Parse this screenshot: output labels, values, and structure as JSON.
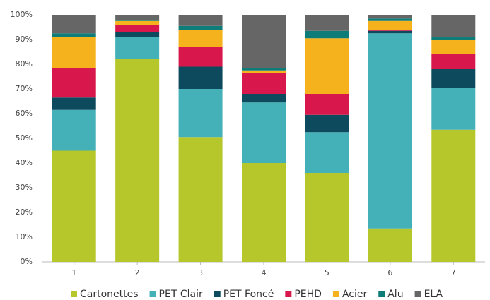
{
  "chart_data": {
    "type": "stacked_bar",
    "categories": [
      "1",
      "2",
      "3",
      "4",
      "5",
      "6",
      "7"
    ],
    "series": [
      {
        "name": "Cartonettes",
        "color": "#b5c72a",
        "values": [
          45,
          82,
          50.5,
          40,
          36,
          13.5,
          53.5
        ]
      },
      {
        "name": "PET Clair",
        "color": "#44b0b8",
        "values": [
          16.5,
          9,
          19.5,
          24.5,
          16.5,
          79,
          17
        ]
      },
      {
        "name": "PET Foncé",
        "color": "#0d4a5e",
        "values": [
          5,
          2,
          9,
          3.5,
          7,
          1,
          7.5
        ]
      },
      {
        "name": "PEHD",
        "color": "#d8184c",
        "values": [
          12,
          3,
          8,
          8.5,
          8.5,
          0.5,
          6
        ]
      },
      {
        "name": "Acier",
        "color": "#f6b21c",
        "values": [
          12.5,
          1.5,
          7,
          1,
          22.5,
          3.5,
          6
        ]
      },
      {
        "name": "Alu",
        "color": "#0e7d7a",
        "values": [
          1.5,
          0.5,
          1.5,
          1,
          3,
          1,
          1
        ]
      },
      {
        "name": "ELA",
        "color": "#666666",
        "values": [
          7.5,
          2,
          4.5,
          21.5,
          6.5,
          1.5,
          9
        ]
      }
    ],
    "ylim": [
      0,
      100
    ],
    "yticks": [
      {
        "value": 0,
        "label": "0%"
      },
      {
        "value": 10,
        "label": "10%"
      },
      {
        "value": 20,
        "label": "20%"
      },
      {
        "value": 30,
        "label": "30%"
      },
      {
        "value": 40,
        "label": "40%"
      },
      {
        "value": 50,
        "label": "50%"
      },
      {
        "value": 60,
        "label": "60%"
      },
      {
        "value": 70,
        "label": "70%"
      },
      {
        "value": 80,
        "label": "80%"
      },
      {
        "value": 90,
        "label": "90%"
      },
      {
        "value": 100,
        "label": "100%"
      }
    ],
    "legend": "bottom"
  }
}
